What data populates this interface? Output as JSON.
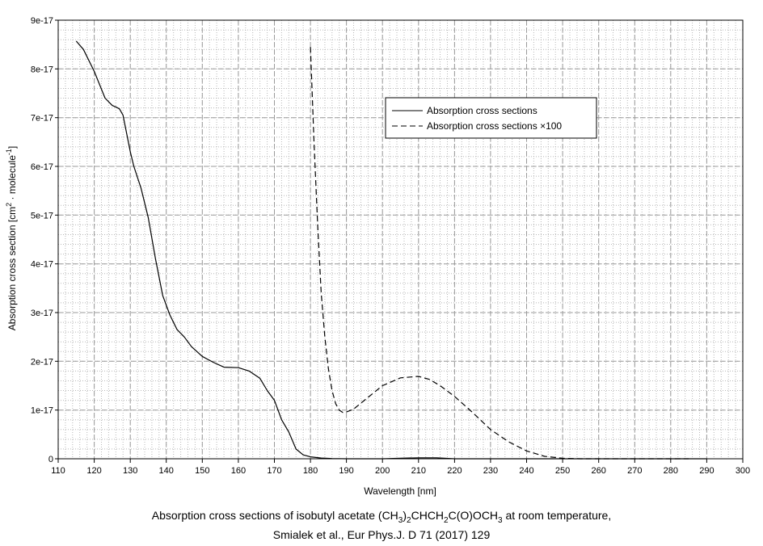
{
  "chart_data": {
    "type": "line",
    "title": "",
    "xlabel": "Wavelength [nm]",
    "ylabel": "Absorption cross section [cm² · molecule⁻¹]",
    "ylabel_parts": {
      "a": "Absorption cross section [cm",
      "sup1": "2",
      "b": " · molecule",
      "sup2": "-1",
      "c": "]"
    },
    "xlim": [
      110,
      300
    ],
    "ylim": [
      0,
      9e-17
    ],
    "grid": true,
    "legend_position": "top-right",
    "x_ticks": [
      110,
      120,
      130,
      140,
      150,
      160,
      170,
      180,
      190,
      200,
      210,
      220,
      230,
      240,
      250,
      260,
      270,
      280,
      290,
      300
    ],
    "y_ticks": [
      0,
      1e-17,
      2e-17,
      3e-17,
      4e-17,
      5e-17,
      6e-17,
      7e-17,
      8e-17,
      9e-17
    ],
    "y_tick_labels": [
      "0",
      "1e-17",
      "2e-17",
      "3e-17",
      "4e-17",
      "5e-17",
      "6e-17",
      "7e-17",
      "8e-17",
      "9e-17"
    ],
    "series": [
      {
        "name": "Absorption cross sections",
        "style": "solid",
        "x": [
          115,
          117,
          120,
          123,
          125,
          126,
          127,
          128,
          130,
          131,
          133,
          135,
          137,
          139,
          141,
          143,
          145,
          147,
          150,
          153,
          156,
          160,
          163,
          166,
          168,
          170,
          172,
          174,
          176,
          178,
          180,
          183,
          186,
          190,
          200,
          210,
          215,
          220,
          240,
          260,
          280,
          290
        ],
        "y": [
          8.57e-17,
          8.4e-17,
          7.95e-17,
          7.4e-17,
          7.25e-17,
          7.22e-17,
          7.18e-17,
          7.05e-17,
          6.3e-17,
          6e-17,
          5.55e-17,
          4.95e-17,
          4.1e-17,
          3.35e-17,
          2.95e-17,
          2.65e-17,
          2.5e-17,
          2.3e-17,
          2.1e-17,
          1.98e-17,
          1.88e-17,
          1.87e-17,
          1.8e-17,
          1.65e-17,
          1.4e-17,
          1.2e-17,
          8e-18,
          5.5e-18,
          2e-18,
          8e-19,
          4e-19,
          1.5e-19,
          5e-20,
          0,
          0,
          2e-19,
          2e-19,
          0,
          0,
          0,
          0,
          0
        ]
      },
      {
        "name": "Absorption cross sections ×100",
        "style": "dashed",
        "x": [
          180,
          181,
          182,
          183,
          184,
          185,
          186,
          187,
          188,
          189,
          190,
          192,
          195,
          200,
          205,
          210,
          213,
          216,
          220,
          225,
          230,
          235,
          240,
          245,
          250,
          255,
          260,
          270,
          280,
          285
        ],
        "y": [
          8.45e-17,
          6.5e-17,
          4.8e-17,
          3.4e-17,
          2.5e-17,
          1.85e-17,
          1.4e-17,
          1.13e-17,
          1e-17,
          9.5e-18,
          9.6e-18,
          1.02e-17,
          1.2e-17,
          1.5e-17,
          1.66e-17,
          1.69e-17,
          1.63e-17,
          1.5e-17,
          1.28e-17,
          9.5e-18,
          6e-18,
          3.5e-18,
          1.6e-18,
          5e-19,
          1e-19,
          0,
          0,
          0,
          0,
          0
        ]
      }
    ],
    "caption_parts": {
      "pre": "Absorption cross sections of isobutyl acetate (CH",
      "s1": "3",
      "m1": ")",
      "s2": "2",
      "m2": "CHCH",
      "s3": "2",
      "m3": "C(O)OCH",
      "s4": "3",
      "post": " at room temperature,"
    },
    "caption_line2": "Smialek et al., Eur Phys.J. D 71 (2017) 129"
  }
}
